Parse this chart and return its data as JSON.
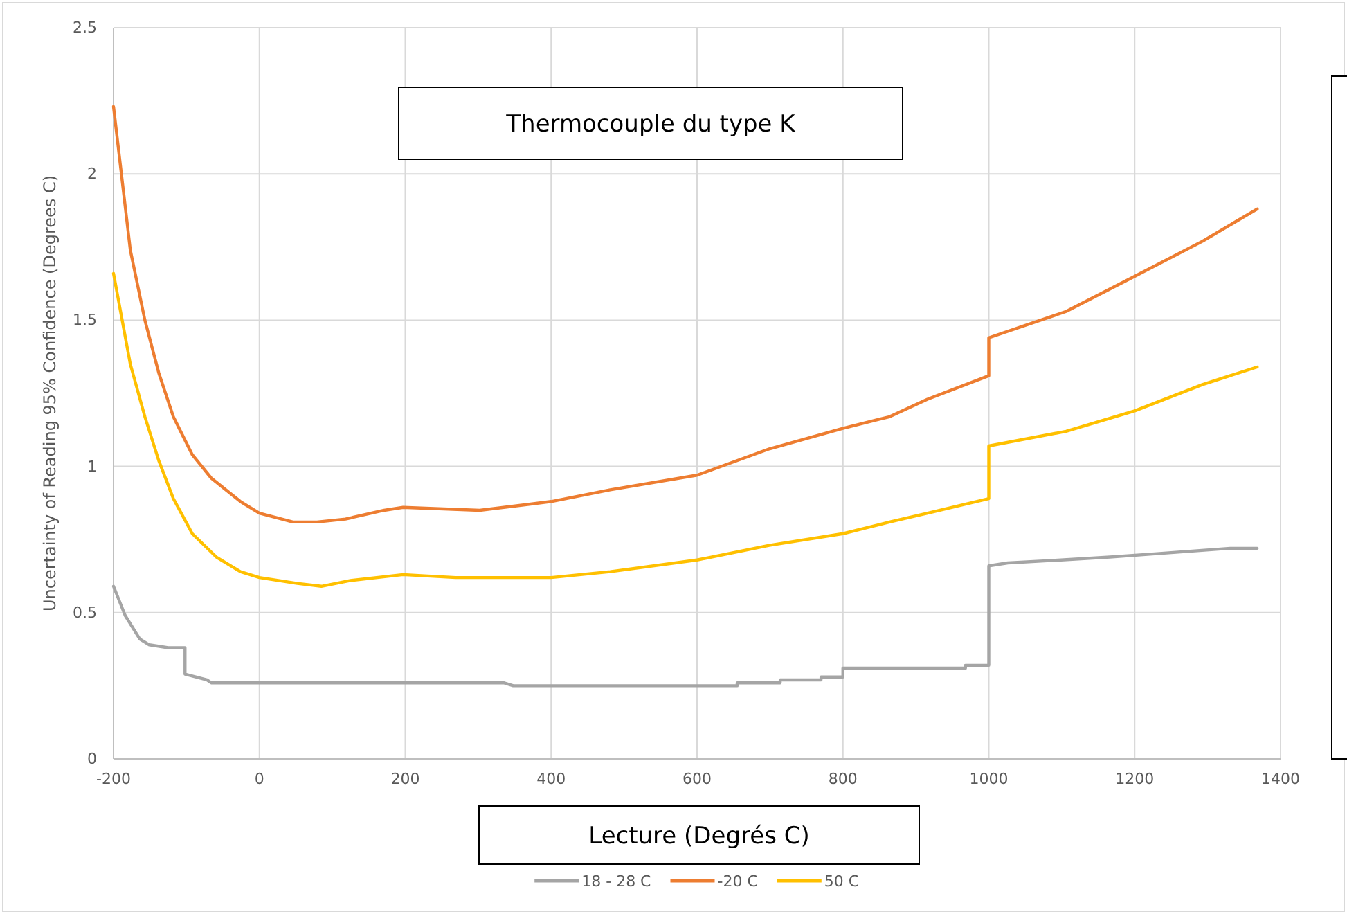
{
  "chart_data": {
    "type": "line",
    "title": "Thermocouple du type K",
    "xlabel": "Lecture (Degrés C)",
    "ylabel": "Uncertainty of Reading 95% Confidence (Degrees C)",
    "xlim": [
      -200,
      1400
    ],
    "xticks": [
      -200,
      0,
      200,
      400,
      600,
      800,
      1000,
      1200,
      1400
    ],
    "ylim": [
      0,
      2.5
    ],
    "yticks": [
      0,
      0.5,
      1,
      1.5,
      2,
      2.5
    ],
    "grid": true,
    "legend": "bottom",
    "marker": "none",
    "line_style": "solid",
    "series": [
      {
        "name": "18 - 28 C",
        "color": "#a5a5a5",
        "x": [
          -200,
          -184,
          -164,
          -151,
          -125,
          -102,
          -102,
          -72,
          -66,
          335,
          348,
          655,
          655,
          714,
          714,
          770,
          770,
          800,
          800,
          968,
          968,
          1000,
          1000,
          1026,
          1099,
          1166,
          1221,
          1276,
          1331,
          1368
        ],
        "values": [
          0.59,
          0.49,
          0.41,
          0.39,
          0.38,
          0.38,
          0.29,
          0.27,
          0.26,
          0.26,
          0.25,
          0.25,
          0.26,
          0.26,
          0.27,
          0.27,
          0.28,
          0.28,
          0.31,
          0.31,
          0.32,
          0.32,
          0.66,
          0.67,
          0.68,
          0.69,
          0.7,
          0.71,
          0.72,
          0.72
        ]
      },
      {
        "name": "-20 C",
        "color": "#ed7d31",
        "x": [
          -200,
          -177,
          -157,
          -138,
          -118,
          -92,
          -66,
          -26,
          0,
          46,
          79,
          118,
          171,
          197,
          302,
          368,
          400,
          481,
          600,
          699,
          800,
          864,
          916,
          1000,
          1000,
          1106,
          1200,
          1293,
          1368
        ],
        "values": [
          2.23,
          1.74,
          1.5,
          1.32,
          1.17,
          1.04,
          0.96,
          0.88,
          0.84,
          0.81,
          0.81,
          0.82,
          0.85,
          0.86,
          0.85,
          0.87,
          0.88,
          0.92,
          0.97,
          1.06,
          1.13,
          1.17,
          1.23,
          1.31,
          1.44,
          1.53,
          1.65,
          1.77,
          1.88
        ]
      },
      {
        "name": "50 C",
        "color": "#ffc000",
        "x": [
          -200,
          -177,
          -157,
          -138,
          -118,
          -92,
          -59,
          -26,
          0,
          52,
          85,
          125,
          197,
          269,
          368,
          400,
          481,
          600,
          699,
          800,
          864,
          916,
          1000,
          1000,
          1106,
          1200,
          1293,
          1368
        ],
        "values": [
          1.66,
          1.35,
          1.17,
          1.02,
          0.89,
          0.77,
          0.69,
          0.64,
          0.62,
          0.6,
          0.59,
          0.61,
          0.63,
          0.62,
          0.62,
          0.62,
          0.64,
          0.68,
          0.73,
          0.77,
          0.81,
          0.84,
          0.89,
          1.07,
          1.12,
          1.19,
          1.28,
          1.34
        ]
      }
    ]
  }
}
